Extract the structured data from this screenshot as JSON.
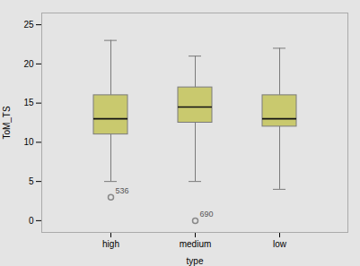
{
  "chart_data": {
    "type": "box",
    "xlabel": "type",
    "ylabel": "ToM_TS",
    "categories": [
      "high",
      "medium",
      "low"
    ],
    "boxes": [
      {
        "q1": 11.0,
        "median": 13.0,
        "q3": 16.0,
        "whislo": 5.0,
        "whishi": 23.0,
        "fliers": [
          3.0
        ],
        "flier_labels": [
          "536"
        ]
      },
      {
        "q1": 12.5,
        "median": 14.5,
        "q3": 17.0,
        "whislo": 5.0,
        "whishi": 21.0,
        "fliers": [
          0.0
        ],
        "flier_labels": [
          "690"
        ]
      },
      {
        "q1": 12.0,
        "median": 13.0,
        "q3": 16.0,
        "whislo": 4.0,
        "whishi": 22.0,
        "fliers": [],
        "flier_labels": []
      }
    ],
    "ylim": [
      -1.5,
      26.5
    ],
    "yticks": [
      0,
      5,
      10,
      15,
      20,
      25
    ],
    "grid": false,
    "color": "#c9c96e"
  }
}
